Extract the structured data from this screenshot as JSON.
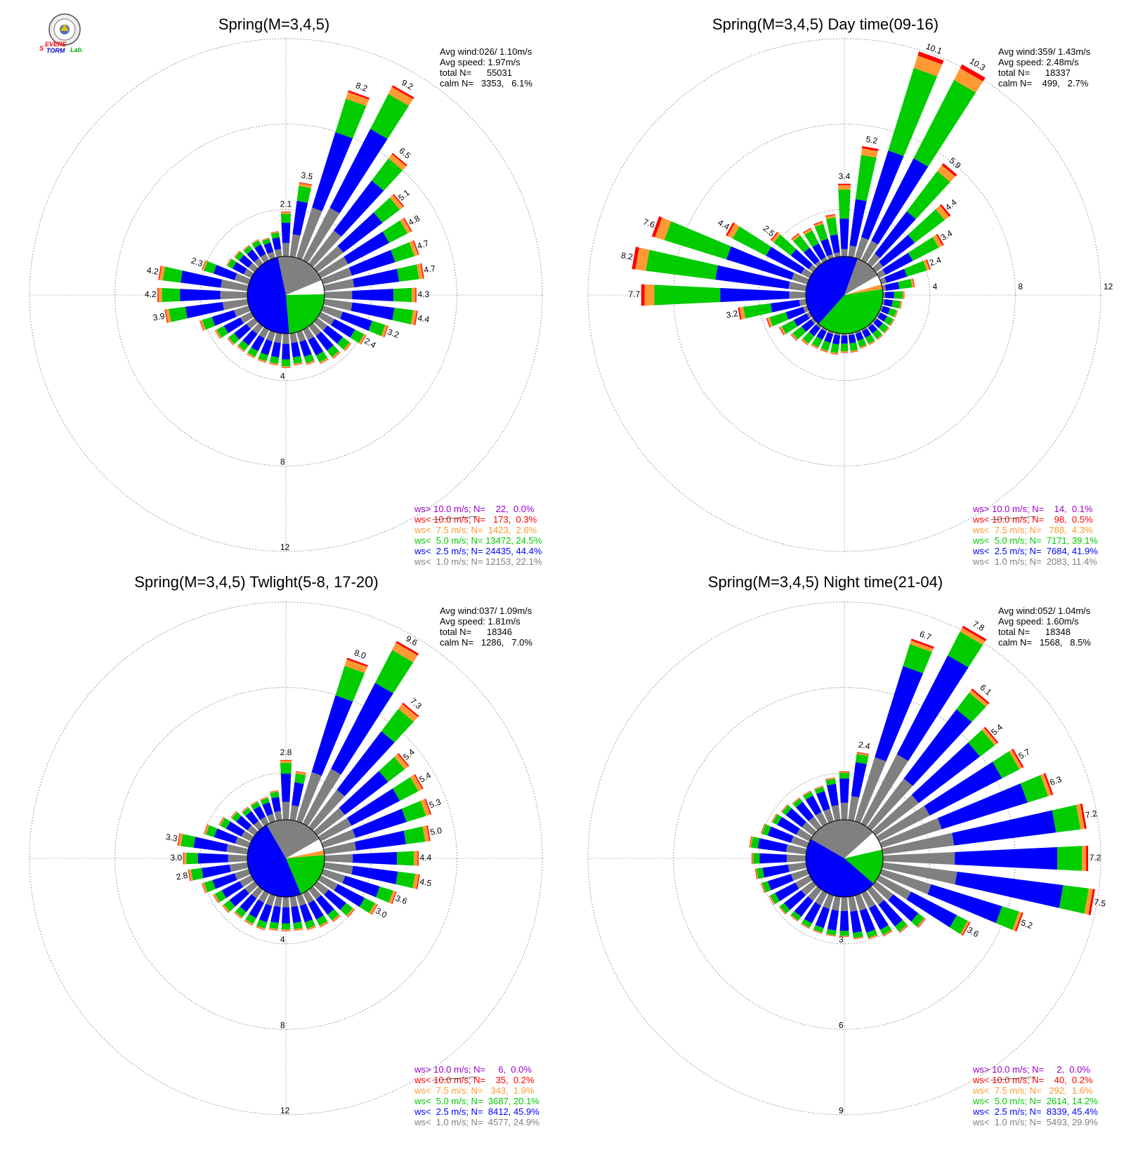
{
  "logo": {
    "text": [
      "S",
      "EVERE",
      "TORM",
      "Lab."
    ]
  },
  "legend_colors": {
    "gt10": "#9900cc",
    "lt10": "#ff0000",
    "lt7_5": "#ff9933",
    "lt5": "#00cc00",
    "lt2_5": "#0000ff",
    "lt1": "#808080"
  },
  "chart_data": [
    {
      "type": "windrose",
      "title": "Spring(M=3,4,5)",
      "stats": [
        "Avg wind:026/ 1.10m/s",
        "Avg speed: 1.97m/s",
        "total N=      55031",
        "calm N=   3353,   6.1%"
      ],
      "ring_labels": [
        "4",
        "8",
        "12"
      ],
      "rmax": 12,
      "legend": [
        "ws> 10.0 m/s; N=    22,  0.0%",
        "ws< 10.0 m/s; N=   173,  0.3%",
        "ws<  7.5 m/s; N=  1423,  2.6%",
        "ws<  5.0 m/s; N= 13472, 24.5%",
        "ws<  2.5 m/s; N= 24435, 44.4%",
        "ws<  1.0 m/s; N= 12153, 22.1%"
      ],
      "directions_deg": [
        0,
        10,
        20,
        30,
        40,
        50,
        60,
        70,
        80,
        90,
        100,
        110,
        120,
        130,
        140,
        150,
        160,
        170,
        180,
        190,
        200,
        210,
        220,
        230,
        240,
        250,
        260,
        270,
        280,
        290,
        300,
        310,
        320,
        330,
        340,
        350
      ],
      "totals": [
        2.1,
        3.5,
        8.2,
        9.2,
        6.5,
        5.1,
        4.8,
        4.7,
        4.7,
        4.3,
        4.4,
        3.2,
        2.4,
        2.0,
        1.9,
        1.8,
        1.6,
        1.5,
        1.6,
        1.5,
        1.5,
        1.5,
        1.5,
        1.6,
        1.9,
        2.4,
        3.9,
        4.2,
        4.2,
        2.3,
        1.3,
        1.2,
        1.1,
        1.1,
        1.0,
        1.2
      ],
      "labeled": [
        0,
        1,
        2,
        3,
        4,
        5,
        6,
        7,
        8,
        9,
        10,
        11,
        12,
        26,
        27,
        28,
        29
      ],
      "speed_fractions": {
        "lt1": 0.3,
        "lt2_5": 0.45,
        "lt5": 0.2,
        "lt7_5": 0.04,
        "lt10": 0.01
      },
      "calm_pie": [
        {
          "color": "gray",
          "fraction": 0.22,
          "start_deg": -12
        },
        {
          "color": "white",
          "fraction": 0.06
        },
        {
          "color": "green",
          "fraction": 0.24
        },
        {
          "color": "blue",
          "fraction": 0.48
        }
      ]
    },
    {
      "type": "windrose",
      "title": "Spring(M=3,4,5) Day time(09-16)",
      "stats": [
        "Avg wind:359/ 1.43m/s",
        "Avg speed: 2.48m/s",
        "total N=      18337",
        "calm N=    499,   2.7%"
      ],
      "ring_labels": [
        "4",
        "8",
        "12"
      ],
      "rmax": 12,
      "legend": [
        "ws> 10.0 m/s; N=    14,  0.1%",
        "ws< 10.0 m/s; N=    98,  0.5%",
        "ws<  7.5 m/s; N=   788,  4.3%",
        "ws<  5.0 m/s; N=  7171, 39.1%",
        "ws<  2.5 m/s; N=  7684, 41.9%",
        "ws<  1.0 m/s; N=  2083, 11.4%"
      ],
      "directions_deg": [
        0,
        10,
        20,
        30,
        40,
        50,
        60,
        70,
        80,
        90,
        100,
        110,
        120,
        130,
        140,
        150,
        160,
        170,
        180,
        190,
        200,
        210,
        220,
        230,
        240,
        250,
        260,
        270,
        280,
        290,
        300,
        310,
        320,
        330,
        340,
        350
      ],
      "totals": [
        3.4,
        5.2,
        10.1,
        10.3,
        5.9,
        4.4,
        3.4,
        2.4,
        1.5,
        1.0,
        0.9,
        0.8,
        0.8,
        0.8,
        0.8,
        0.8,
        0.8,
        0.9,
        0.9,
        1.0,
        1.0,
        1.0,
        1.1,
        1.3,
        1.6,
        2.0,
        3.2,
        7.7,
        8.2,
        7.6,
        4.4,
        2.5,
        1.8,
        1.7,
        1.8,
        2.0
      ],
      "labeled": [
        0,
        1,
        2,
        3,
        4,
        5,
        6,
        7,
        26,
        27,
        28,
        29,
        30,
        31
      ],
      "speed_fractions": {
        "lt1": 0.1,
        "lt2_5": 0.42,
        "lt5": 0.4,
        "lt7_5": 0.06,
        "lt10": 0.02
      },
      "calm_pie": [
        {
          "color": "gray",
          "fraction": 0.11,
          "start_deg": 20
        },
        {
          "color": "white",
          "fraction": 0.04
        },
        {
          "color": "orange",
          "fraction": 0.02
        },
        {
          "color": "green",
          "fraction": 0.39
        },
        {
          "color": "blue",
          "fraction": 0.44
        }
      ]
    },
    {
      "type": "windrose",
      "title": "Spring(M=3,4,5) Twlight(5-8, 17-20)",
      "stats": [
        "Avg wind:037/ 1.09m/s",
        "Avg speed: 1.81m/s",
        "total N=      18346",
        "calm N=   1286,   7.0%"
      ],
      "ring_labels": [
        "4",
        "8",
        "12"
      ],
      "rmax": 12,
      "legend": [
        "ws> 10.0 m/s; N=     6,  0.0%",
        "ws< 10.0 m/s; N=    35,  0.2%",
        "ws<  7.5 m/s; N=   343,  1.9%",
        "ws<  5.0 m/s; N=  3687, 20.1%",
        "ws<  2.5 m/s; N=  8412, 45.9%",
        "ws<  1.0 m/s; N=  4577, 24.9%"
      ],
      "directions_deg": [
        0,
        10,
        20,
        30,
        40,
        50,
        60,
        70,
        80,
        90,
        100,
        110,
        120,
        130,
        140,
        150,
        160,
        170,
        180,
        190,
        200,
        210,
        220,
        230,
        240,
        250,
        260,
        270,
        280,
        290,
        300,
        310,
        320,
        330,
        340,
        350
      ],
      "totals": [
        2.8,
        2.3,
        8.0,
        9.6,
        7.3,
        5.4,
        5.4,
        5.3,
        5.0,
        4.4,
        4.5,
        3.6,
        3.0,
        2.2,
        1.9,
        1.8,
        1.7,
        1.6,
        1.6,
        1.6,
        1.7,
        1.7,
        1.7,
        1.9,
        2.0,
        2.3,
        2.8,
        3.0,
        3.3,
        2.2,
        1.7,
        1.4,
        1.2,
        1.2,
        1.2,
        1.4
      ],
      "labeled": [
        0,
        2,
        3,
        4,
        5,
        6,
        7,
        8,
        9,
        10,
        11,
        12,
        26,
        27,
        28
      ],
      "speed_fractions": {
        "lt1": 0.3,
        "lt2_5": 0.47,
        "lt5": 0.18,
        "lt7_5": 0.04,
        "lt10": 0.01
      },
      "calm_pie": [
        {
          "color": "gray",
          "fraction": 0.25,
          "start_deg": -30
        },
        {
          "color": "white",
          "fraction": 0.05
        },
        {
          "color": "orange",
          "fraction": 0.02
        },
        {
          "color": "green",
          "fraction": 0.2
        },
        {
          "color": "blue",
          "fraction": 0.48
        }
      ]
    },
    {
      "type": "windrose",
      "title": "Spring(M=3,4,5) Night time(21-04)",
      "stats": [
        "Avg wind:052/ 1.04m/s",
        "Avg speed: 1.60m/s",
        "total N=      18348",
        "calm N=   1568,   8.5%"
      ],
      "ring_labels": [
        "3",
        "6",
        "9"
      ],
      "rmax": 9,
      "legend": [
        "ws> 10.0 m/s; N=     2,  0.0%",
        "ws< 10.0 m/s; N=    40,  0.2%",
        "ws<  7.5 m/s; N=   292,  1.6%",
        "ws<  5.0 m/s; N=  2614, 14.2%",
        "ws<  2.5 m/s; N=  8339, 45.4%",
        "ws<  1.0 m/s; N=  5493, 29.9%"
      ],
      "directions_deg": [
        0,
        10,
        20,
        30,
        40,
        50,
        60,
        70,
        80,
        90,
        100,
        110,
        120,
        130,
        140,
        150,
        160,
        170,
        180,
        190,
        200,
        210,
        220,
        230,
        240,
        250,
        260,
        270,
        280,
        290,
        300,
        310,
        320,
        330,
        340,
        350
      ],
      "totals": [
        1.7,
        2.4,
        6.7,
        7.8,
        6.1,
        5.4,
        5.7,
        6.3,
        7.2,
        7.2,
        7.5,
        5.2,
        3.6,
        2.2,
        1.9,
        1.7,
        1.6,
        1.5,
        1.4,
        1.4,
        1.4,
        1.4,
        1.4,
        1.5,
        1.6,
        1.7,
        1.8,
        1.9,
        2.0,
        1.7,
        1.5,
        1.4,
        1.3,
        1.3,
        1.3,
        1.5
      ],
      "labeled": [
        1,
        2,
        3,
        4,
        5,
        6,
        7,
        8,
        9,
        10,
        11,
        12
      ],
      "speed_fractions": {
        "lt1": 0.35,
        "lt2_5": 0.5,
        "lt5": 0.12,
        "lt7_5": 0.02,
        "lt10": 0.01
      },
      "calm_pie": [
        {
          "color": "gray",
          "fraction": 0.3,
          "start_deg": -60
        },
        {
          "color": "white",
          "fraction": 0.08
        },
        {
          "color": "green",
          "fraction": 0.15
        },
        {
          "color": "blue",
          "fraction": 0.47
        }
      ]
    }
  ]
}
